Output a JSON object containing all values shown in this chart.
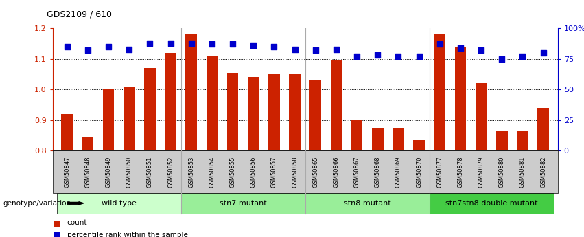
{
  "title": "GDS2109 / 610",
  "samples": [
    "GSM50847",
    "GSM50848",
    "GSM50849",
    "GSM50850",
    "GSM50851",
    "GSM50852",
    "GSM50853",
    "GSM50854",
    "GSM50855",
    "GSM50856",
    "GSM50857",
    "GSM50858",
    "GSM50865",
    "GSM50866",
    "GSM50867",
    "GSM50868",
    "GSM50869",
    "GSM50870",
    "GSM50877",
    "GSM50878",
    "GSM50879",
    "GSM50880",
    "GSM50881",
    "GSM50882"
  ],
  "count_values": [
    0.92,
    0.845,
    1.0,
    1.01,
    1.07,
    1.12,
    1.18,
    1.11,
    1.055,
    1.04,
    1.05,
    1.05,
    1.03,
    1.095,
    0.9,
    0.875,
    0.875,
    0.835,
    1.18,
    1.14,
    1.02,
    0.865,
    0.865,
    0.94
  ],
  "percentile_values": [
    85,
    82,
    85,
    83,
    88,
    88,
    88,
    87,
    87,
    86,
    85,
    83,
    82,
    83,
    77,
    78,
    77,
    77,
    87,
    84,
    82,
    75,
    77,
    80
  ],
  "bar_color": "#cc2200",
  "dot_color": "#0000cc",
  "ylim_left": [
    0.8,
    1.2
  ],
  "ylim_right": [
    0,
    100
  ],
  "yticks_left": [
    0.8,
    0.9,
    1.0,
    1.1,
    1.2
  ],
  "yticks_right": [
    0,
    25,
    50,
    75,
    100
  ],
  "ytick_labels_right": [
    "0",
    "25",
    "50",
    "75",
    "100%"
  ],
  "grid_lines": [
    0.9,
    1.0,
    1.1
  ],
  "groups": [
    {
      "label": "wild type",
      "start": 0,
      "end": 5,
      "color": "#ccffcc"
    },
    {
      "label": "stn7 mutant",
      "start": 6,
      "end": 11,
      "color": "#99ee99"
    },
    {
      "label": "stn8 mutant",
      "start": 12,
      "end": 17,
      "color": "#99ee99"
    },
    {
      "label": "stn7stn8 double mutant",
      "start": 18,
      "end": 23,
      "color": "#44cc44"
    }
  ],
  "legend_label_bar": "count",
  "legend_label_dot": "percentile rank within the sample",
  "genotype_label": "genotype/variation",
  "background_color": "#ffffff",
  "plot_bg_color": "#ffffff",
  "bar_bottom": 0.8,
  "tick_bg": "#cccccc",
  "group_line_color": "#aaaaaa"
}
